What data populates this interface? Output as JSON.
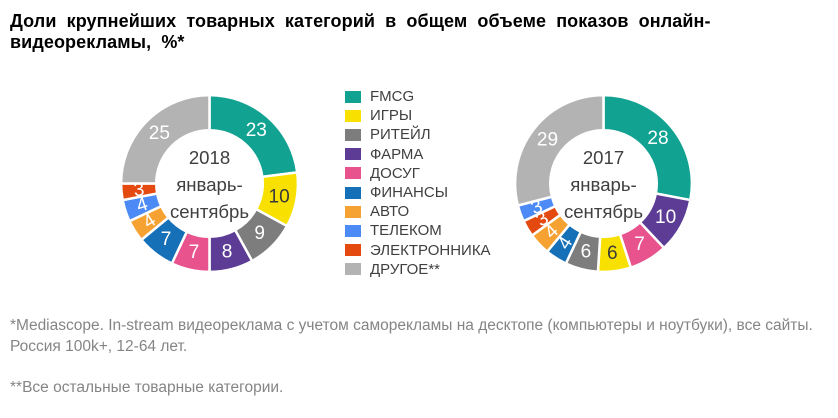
{
  "title": "Доли крупнейших товарных категорий в общем объеме показов онлайн-видеорекламы, %*",
  "colors": {
    "FMCG": "#12A292",
    "ИГРЫ": "#F8E100",
    "РИТЕЙЛ": "#7D7D7D",
    "ФАРМА": "#5C3C94",
    "ДОСУГ": "#E8538D",
    "ФИНАНСЫ": "#1570B8",
    "АВТО": "#F6A233",
    "ТЕЛЕКОМ": "#4C8BF5",
    "ЭЛЕКТРОННИКА": "#E4490F",
    "ДРУГОЕ": "#B3B3B3"
  },
  "label_colors": {
    "default": "#FFFFFF",
    "ИГРЫ": "#3A3A3A",
    "center": "#404040"
  },
  "legend": [
    {
      "category": "FMCG",
      "label": "FMCG"
    },
    {
      "category": "ИГРЫ",
      "label": "ИГРЫ"
    },
    {
      "category": "РИТЕЙЛ",
      "label": "РИТЕЙЛ"
    },
    {
      "category": "ФАРМА",
      "label": "ФАРМА"
    },
    {
      "category": "ДОСУГ",
      "label": "ДОСУГ"
    },
    {
      "category": "ФИНАНСЫ",
      "label": "ФИНАНСЫ"
    },
    {
      "category": "АВТО",
      "label": "АВТО"
    },
    {
      "category": "ТЕЛЕКОМ",
      "label": "ТЕЛЕКОМ"
    },
    {
      "category": "ЭЛЕКТРОННИКА",
      "label": "ЭЛЕКТРОННИКА"
    },
    {
      "category": "ДРУГОЕ",
      "label": "ДРУГОЕ**"
    }
  ],
  "chart_data": [
    {
      "type": "pie",
      "subtype": "donut",
      "title": "2018 январь-сентябрь",
      "center_lines": [
        "2018",
        "январь-",
        "сентябрь"
      ],
      "units": "%",
      "legend_position": "right-of-chart",
      "slices": [
        {
          "category": "FMCG",
          "value": 23
        },
        {
          "category": "ИГРЫ",
          "value": 10
        },
        {
          "category": "РИТЕЙЛ",
          "value": 9
        },
        {
          "category": "ФАРМА",
          "value": 8
        },
        {
          "category": "ДОСУГ",
          "value": 7
        },
        {
          "category": "ФИНАНСЫ",
          "value": 7
        },
        {
          "category": "АВТО",
          "value": 4
        },
        {
          "category": "ТЕЛЕКОМ",
          "value": 4
        },
        {
          "category": "ЭЛЕКТРОННИКА",
          "value": 3
        },
        {
          "category": "ДРУГОЕ",
          "value": 25
        }
      ]
    },
    {
      "type": "pie",
      "subtype": "donut",
      "title": "2017 январь-сентябрь",
      "center_lines": [
        "2017",
        "январь-",
        "сентябрь"
      ],
      "units": "%",
      "legend_position": "left-of-chart",
      "slices": [
        {
          "category": "FMCG",
          "value": 28
        },
        {
          "category": "ФАРМА",
          "value": 10
        },
        {
          "category": "ДОСУГ",
          "value": 7
        },
        {
          "category": "ИГРЫ",
          "value": 6
        },
        {
          "category": "РИТЕЙЛ",
          "value": 6
        },
        {
          "category": "ФИНАНСЫ",
          "value": 4
        },
        {
          "category": "АВТО",
          "value": 4
        },
        {
          "category": "ЭЛЕКТРОННИКА",
          "value": 3
        },
        {
          "category": "ТЕЛЕКОМ",
          "value": 3
        },
        {
          "category": "ДРУГОЕ",
          "value": 29
        }
      ]
    }
  ],
  "footnotes": {
    "source_line1": "*Mediascope. In-stream видеореклама с учетом саморекламы на десктопе (компьютеры и ноутбуки), все сайты.",
    "source_line2": "Россия 100k+, 12-64 лет.",
    "categories_note": "**Все остальные товарные категории."
  }
}
